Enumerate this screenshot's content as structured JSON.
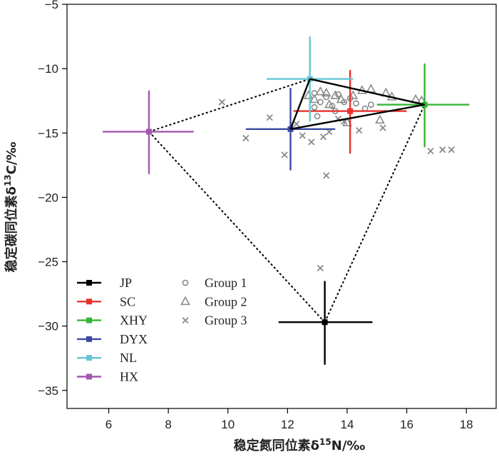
{
  "chart_data": {
    "type": "scatter",
    "xlabel": "稳定氮同位素δ15N/‰",
    "ylabel": "稳定碳同位素δ13C/‰",
    "xlim": [
      4.6,
      19.0
    ],
    "ylim": [
      -36.4,
      -5
    ],
    "xticks": [
      6,
      8,
      10,
      12,
      14,
      16,
      18
    ],
    "yticks": [
      -35,
      -30,
      -25,
      -20,
      -15,
      -10,
      -5
    ],
    "sources": [
      {
        "name": "JP",
        "color": "#000000",
        "x": 13.25,
        "y": -29.7,
        "xerr_lo": 1.55,
        "xerr_hi": 1.6,
        "yerr_lo": 3.3,
        "yerr_hi": 3.2
      },
      {
        "name": "SC",
        "color": "#e8322e",
        "x": 14.1,
        "y": -13.3,
        "xerr_lo": 1.9,
        "xerr_hi": 1.9,
        "yerr_lo": 3.3,
        "yerr_hi": 3.2
      },
      {
        "name": "XHY",
        "color": "#35b535",
        "x": 16.6,
        "y": -12.8,
        "xerr_lo": 1.6,
        "xerr_hi": 1.5,
        "yerr_lo": 3.3,
        "yerr_hi": 3.2
      },
      {
        "name": "DYX",
        "color": "#3b4aa8",
        "x": 12.1,
        "y": -14.7,
        "xerr_lo": 1.5,
        "xerr_hi": 1.5,
        "yerr_lo": 3.2,
        "yerr_hi": 3.2
      },
      {
        "name": "NL",
        "color": "#66c5d6",
        "x": 12.75,
        "y": -10.8,
        "xerr_lo": 1.45,
        "xerr_hi": 1.45,
        "yerr_lo": 3.3,
        "yerr_hi": 3.3
      },
      {
        "name": "HX",
        "color": "#a454b0",
        "x": 7.35,
        "y": -14.9,
        "xerr_lo": 1.55,
        "xerr_hi": 1.5,
        "yerr_lo": 3.3,
        "yerr_hi": 3.2
      }
    ],
    "mixing_polygon_solid": [
      [
        "NL",
        "XHY"
      ],
      [
        "XHY",
        "DYX"
      ],
      [
        "DYX",
        "NL"
      ]
    ],
    "mixing_polygon_dashed": [
      [
        "HX",
        "NL"
      ],
      [
        "HX",
        "JP"
      ],
      [
        "JP",
        "XHY"
      ]
    ],
    "groups": [
      {
        "name": "Group 1",
        "marker": "circle",
        "points": [
          [
            12.9,
            -11.9
          ],
          [
            13.3,
            -12.2
          ],
          [
            13.7,
            -12.0
          ],
          [
            13.1,
            -12.6
          ],
          [
            13.5,
            -12.9
          ],
          [
            13.9,
            -12.6
          ],
          [
            13.6,
            -13.3
          ],
          [
            14.3,
            -12.7
          ],
          [
            14.6,
            -13.1
          ],
          [
            14.8,
            -12.8
          ],
          [
            13.0,
            -13.7
          ],
          [
            14.1,
            -12.3
          ],
          [
            12.9,
            -13.0
          ]
        ]
      },
      {
        "name": "Group 2",
        "marker": "triangle",
        "points": [
          [
            12.7,
            -12.1
          ],
          [
            12.9,
            -12.4
          ],
          [
            13.1,
            -11.8
          ],
          [
            13.3,
            -11.9
          ],
          [
            13.6,
            -12.1
          ],
          [
            13.8,
            -12.4
          ],
          [
            14.2,
            -12.1
          ],
          [
            14.5,
            -11.7
          ],
          [
            14.8,
            -11.6
          ],
          [
            15.3,
            -11.9
          ],
          [
            15.5,
            -12.2
          ],
          [
            16.3,
            -12.4
          ],
          [
            16.5,
            -12.5
          ],
          [
            15.1,
            -14.0
          ],
          [
            14.0,
            -14.2
          ],
          [
            13.4,
            -12.8
          ]
        ]
      },
      {
        "name": "Group 3",
        "marker": "x",
        "points": [
          [
            9.8,
            -12.6
          ],
          [
            11.4,
            -13.8
          ],
          [
            10.6,
            -15.4
          ],
          [
            11.9,
            -16.7
          ],
          [
            12.5,
            -15.2
          ],
          [
            12.8,
            -15.7
          ],
          [
            13.2,
            -15.3
          ],
          [
            13.3,
            -18.3
          ],
          [
            13.4,
            -14.9
          ],
          [
            13.9,
            -14.1
          ],
          [
            14.4,
            -14.8
          ],
          [
            15.2,
            -14.6
          ],
          [
            16.8,
            -16.4
          ],
          [
            17.2,
            -16.3
          ],
          [
            17.5,
            -16.3
          ],
          [
            13.1,
            -25.5
          ],
          [
            12.3,
            -14.3
          ],
          [
            13.7,
            -13.9
          ]
        ]
      }
    ],
    "legend": {
      "placement": "bottom-left"
    }
  }
}
